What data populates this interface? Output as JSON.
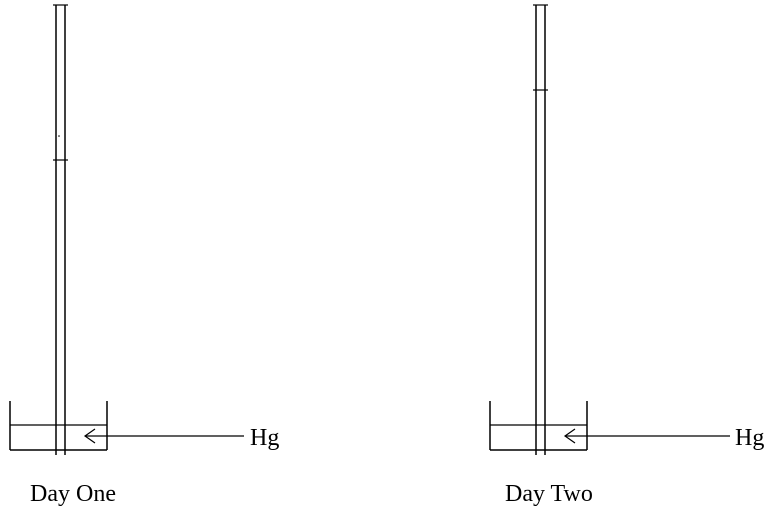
{
  "barometers": [
    {
      "caption": "Day One",
      "liquid_label": "Hg"
    },
    {
      "caption": "Day Two",
      "liquid_label": "Hg"
    }
  ],
  "colors": {
    "line": "#000000",
    "background": "#ffffff"
  }
}
